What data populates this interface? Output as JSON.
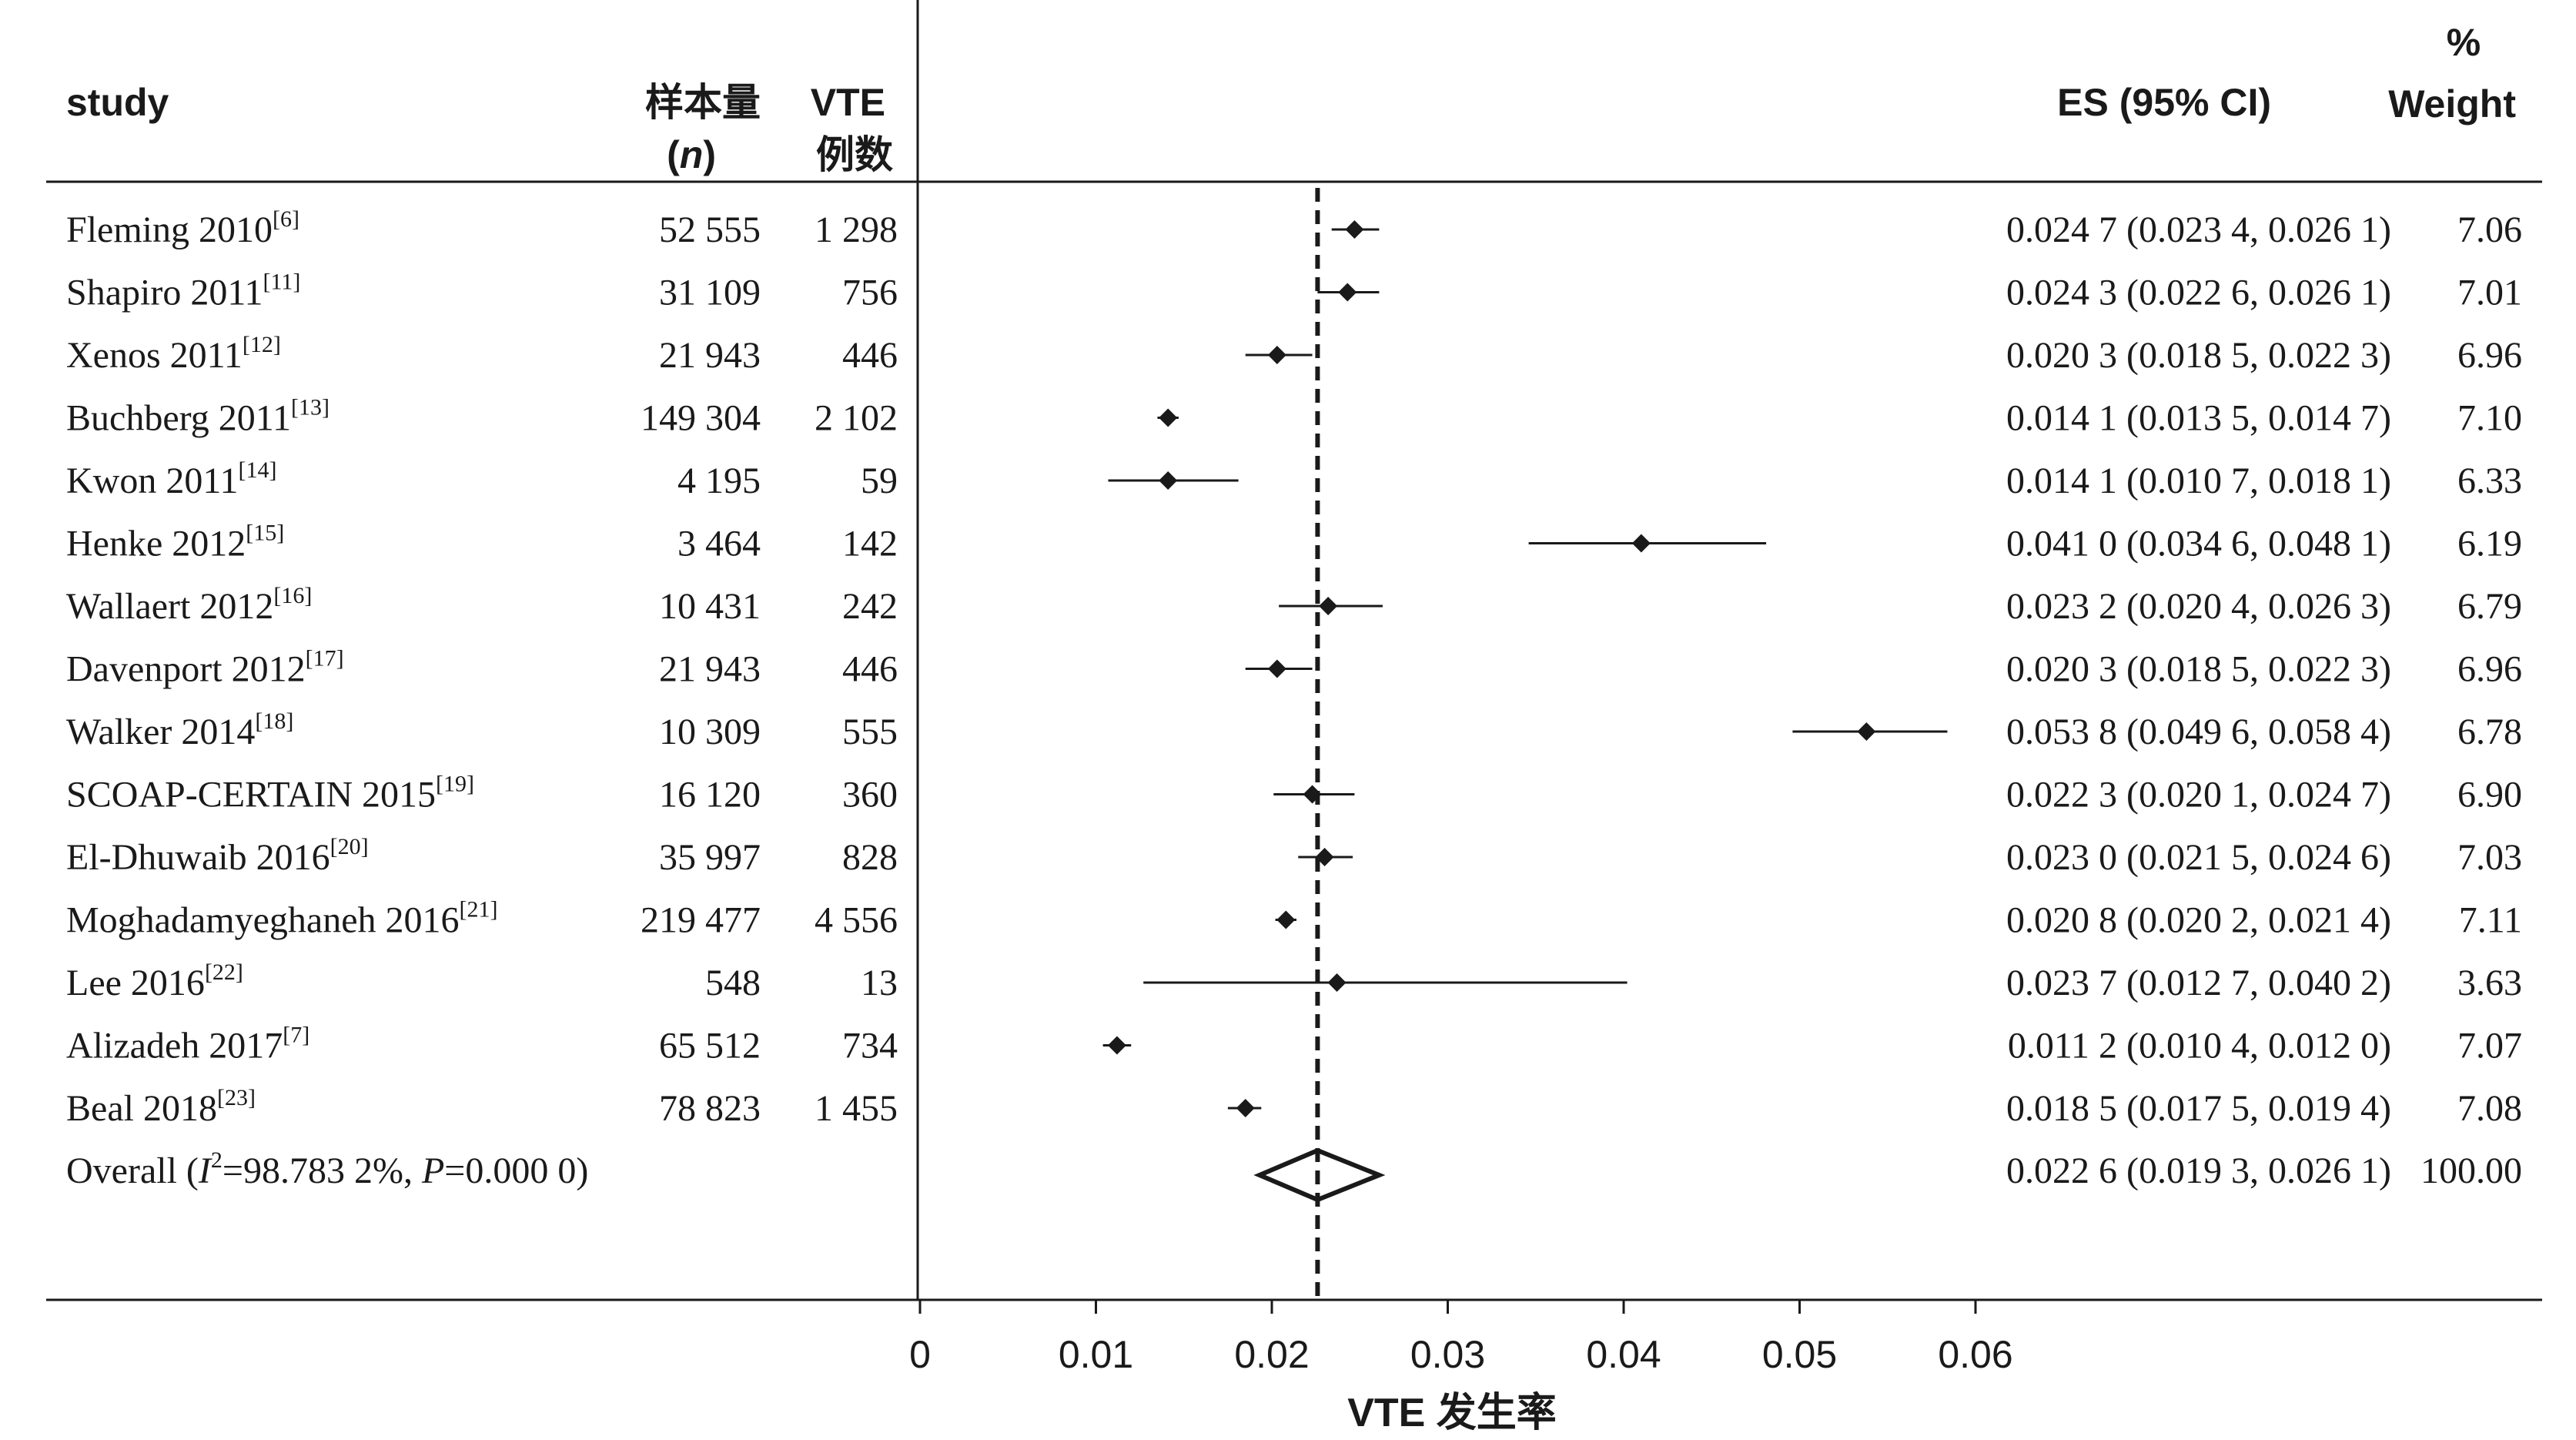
{
  "headers": {
    "study": "study",
    "n_line1": "样本量",
    "n_line2_open": "(",
    "n_line2_n": "n",
    "n_line2_close": ")",
    "vte_line1": "VTE",
    "vte_line2": "例数",
    "es": "ES (95% CI)",
    "weight_line1": "%",
    "weight_line2": "Weight"
  },
  "overall": {
    "label_prefix": "Overall  (",
    "label_i": "I",
    "label_sup": "2",
    "label_mid": "=98.783 2%, ",
    "label_p": "P",
    "label_end": "=0.000 0)",
    "ci_text": "0.022 6 (0.019 3, 0.026 1)",
    "weight": "100.00",
    "es": 0.0226,
    "lo": 0.0193,
    "hi": 0.0261
  },
  "chart_data": {
    "type": "forest",
    "xlabel": "VTE 发生率",
    "xlim": [
      0,
      0.06
    ],
    "ticks": [
      0,
      0.01,
      0.02,
      0.03,
      0.04,
      0.05,
      0.06
    ],
    "tick_labels": [
      "0",
      "0.01",
      "0.02",
      "0.03",
      "0.04",
      "0.05",
      "0.06"
    ],
    "reference_line": 0.0226,
    "studies": [
      {
        "name": "Fleming 2010",
        "ref": "[6]",
        "n": "52 555",
        "vte": "1 298",
        "es": 0.0247,
        "lo": 0.0234,
        "hi": 0.0261,
        "ci_text": "0.024 7 (0.023 4, 0.026 1)",
        "weight": "7.06"
      },
      {
        "name": "Shapiro 2011",
        "ref": "[11]",
        "n": "31 109",
        "vte": "756",
        "es": 0.0243,
        "lo": 0.0226,
        "hi": 0.0261,
        "ci_text": "0.024 3 (0.022 6, 0.026 1)",
        "weight": "7.01"
      },
      {
        "name": "Xenos 2011",
        "ref": "[12]",
        "n": "21 943",
        "vte": "446",
        "es": 0.0203,
        "lo": 0.0185,
        "hi": 0.0223,
        "ci_text": "0.020 3 (0.018 5, 0.022 3)",
        "weight": "6.96"
      },
      {
        "name": "Buchberg 2011",
        "ref": "[13]",
        "n": "149 304",
        "vte": "2 102",
        "es": 0.0141,
        "lo": 0.0135,
        "hi": 0.0147,
        "ci_text": "0.014 1 (0.013 5, 0.014 7)",
        "weight": "7.10"
      },
      {
        "name": "Kwon 2011",
        "ref": "[14]",
        "n": "4 195",
        "vte": "59",
        "es": 0.0141,
        "lo": 0.0107,
        "hi": 0.0181,
        "ci_text": "0.014 1 (0.010 7, 0.018 1)",
        "weight": "6.33"
      },
      {
        "name": "Henke 2012",
        "ref": "[15]",
        "n": "3 464",
        "vte": "142",
        "es": 0.041,
        "lo": 0.0346,
        "hi": 0.0481,
        "ci_text": "0.041 0 (0.034 6, 0.048 1)",
        "weight": "6.19"
      },
      {
        "name": "Wallaert 2012",
        "ref": "[16]",
        "n": "10 431",
        "vte": "242",
        "es": 0.0232,
        "lo": 0.0204,
        "hi": 0.0263,
        "ci_text": "0.023 2 (0.020 4, 0.026 3)",
        "weight": "6.79"
      },
      {
        "name": "Davenport 2012",
        "ref": "[17]",
        "n": "21 943",
        "vte": "446",
        "es": 0.0203,
        "lo": 0.0185,
        "hi": 0.0223,
        "ci_text": "0.020 3 (0.018 5, 0.022 3)",
        "weight": "6.96"
      },
      {
        "name": "Walker 2014",
        "ref": "[18]",
        "n": "10 309",
        "vte": "555",
        "es": 0.0538,
        "lo": 0.0496,
        "hi": 0.0584,
        "ci_text": "0.053 8 (0.049 6, 0.058 4)",
        "weight": "6.78"
      },
      {
        "name": "SCOAP-CERTAIN 2015",
        "ref": "[19]",
        "n": "16 120",
        "vte": "360",
        "es": 0.0223,
        "lo": 0.0201,
        "hi": 0.0247,
        "ci_text": "0.022 3 (0.020 1, 0.024 7)",
        "weight": "6.90"
      },
      {
        "name": "El-Dhuwaib 2016",
        "ref": "[20]",
        "n": "35 997",
        "vte": "828",
        "es": 0.023,
        "lo": 0.0215,
        "hi": 0.0246,
        "ci_text": "0.023 0 (0.021 5, 0.024 6)",
        "weight": "7.03"
      },
      {
        "name": "Moghadamyeghaneh 2016",
        "ref": "[21]",
        "n": "219 477",
        "vte": "4 556",
        "es": 0.0208,
        "lo": 0.0202,
        "hi": 0.0214,
        "ci_text": "0.020 8 (0.020 2, 0.021 4)",
        "weight": "7.11"
      },
      {
        "name": "Lee 2016",
        "ref": "[22]",
        "n": "548",
        "vte": "13",
        "es": 0.0237,
        "lo": 0.0127,
        "hi": 0.0402,
        "ci_text": "0.023 7 (0.012 7, 0.040 2)",
        "weight": "3.63"
      },
      {
        "name": "Alizadeh 2017",
        "ref": "[7]",
        "n": "65 512",
        "vte": "734",
        "es": 0.0112,
        "lo": 0.0104,
        "hi": 0.012,
        "ci_text": "0.011 2 (0.010 4, 0.012 0)",
        "weight": "7.07"
      },
      {
        "name": "Beal 2018",
        "ref": "[23]",
        "n": "78 823",
        "vte": "1 455",
        "es": 0.0185,
        "lo": 0.0175,
        "hi": 0.0194,
        "ci_text": "0.018 5 (0.017 5, 0.019 4)",
        "weight": "7.08"
      }
    ]
  }
}
